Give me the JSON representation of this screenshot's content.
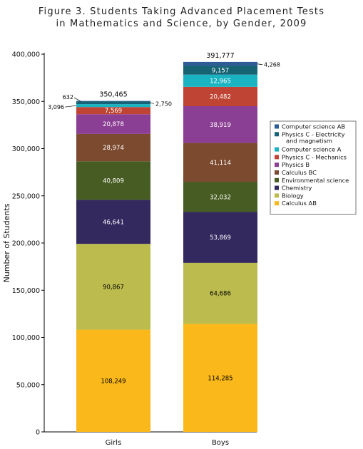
{
  "chart_data": {
    "type": "bar",
    "stacked": true,
    "title_lines": [
      "Figure 3. Students Taking Advanced Placement Tests",
      "in Mathematics and Science, by Gender, 2009"
    ],
    "ylabel": "Number of Students",
    "xlabel": "",
    "ylim": [
      0,
      400000
    ],
    "yticks": [
      0,
      50000,
      100000,
      150000,
      200000,
      250000,
      300000,
      350000,
      400000
    ],
    "ytick_labels": [
      "0",
      "50,000",
      "100,000",
      "150,000",
      "200,000",
      "250,000",
      "300,000",
      "350,000",
      "400,000"
    ],
    "categories": [
      "Girls",
      "Boys"
    ],
    "totals": [
      350465,
      391777
    ],
    "total_labels": [
      "350,465",
      "391,777"
    ],
    "legend_position": "right",
    "series": [
      {
        "name": "Calculus AB",
        "color": "#fbb81a",
        "values": [
          108249,
          114285
        ],
        "labels": [
          "108,249",
          "114,285"
        ],
        "label_color": "#000000"
      },
      {
        "name": "Biology",
        "color": "#bcbc4e",
        "values": [
          90867,
          64686
        ],
        "labels": [
          "90,867",
          "64,686"
        ],
        "label_color": "#000000"
      },
      {
        "name": "Chemistry",
        "color": "#33295f",
        "values": [
          46641,
          53869
        ],
        "labels": [
          "46,641",
          "53,869"
        ],
        "label_color": "#ffffff"
      },
      {
        "name": "Environmental science",
        "color": "#475c22",
        "values": [
          40809,
          32032
        ],
        "labels": [
          "40,809",
          "32,032"
        ],
        "label_color": "#ffffff"
      },
      {
        "name": "Calculus BC",
        "color": "#7c4a2e",
        "values": [
          28974,
          41114
        ],
        "labels": [
          "28,974",
          "41,114"
        ],
        "label_color": "#ffffff"
      },
      {
        "name": "Physics B",
        "color": "#8b3f94",
        "values": [
          20878,
          38919
        ],
        "labels": [
          "20,878",
          "38,919"
        ],
        "label_color": "#ffffff"
      },
      {
        "name": "Physics C - Mechanics",
        "color": "#bf4433",
        "values": [
          7569,
          20482
        ],
        "labels": [
          "7,569",
          "20,482"
        ],
        "label_color": "#ffffff"
      },
      {
        "name": "Computer science A",
        "color": "#1ab3c2",
        "values": [
          3096,
          12965
        ],
        "labels": [
          "3,096",
          "12,965"
        ],
        "label_color": "#ffffff"
      },
      {
        "name": "Physics C - Electricity\nand magnetism",
        "color": "#166373",
        "values": [
          2750,
          9157
        ],
        "labels": [
          "2,750",
          "9,157"
        ],
        "label_color": "#ffffff"
      },
      {
        "name": "Computer science AB",
        "color": "#2e5c94",
        "values": [
          632,
          4268
        ],
        "labels": [
          "632",
          "4,268"
        ],
        "label_color": "#000000"
      }
    ]
  }
}
